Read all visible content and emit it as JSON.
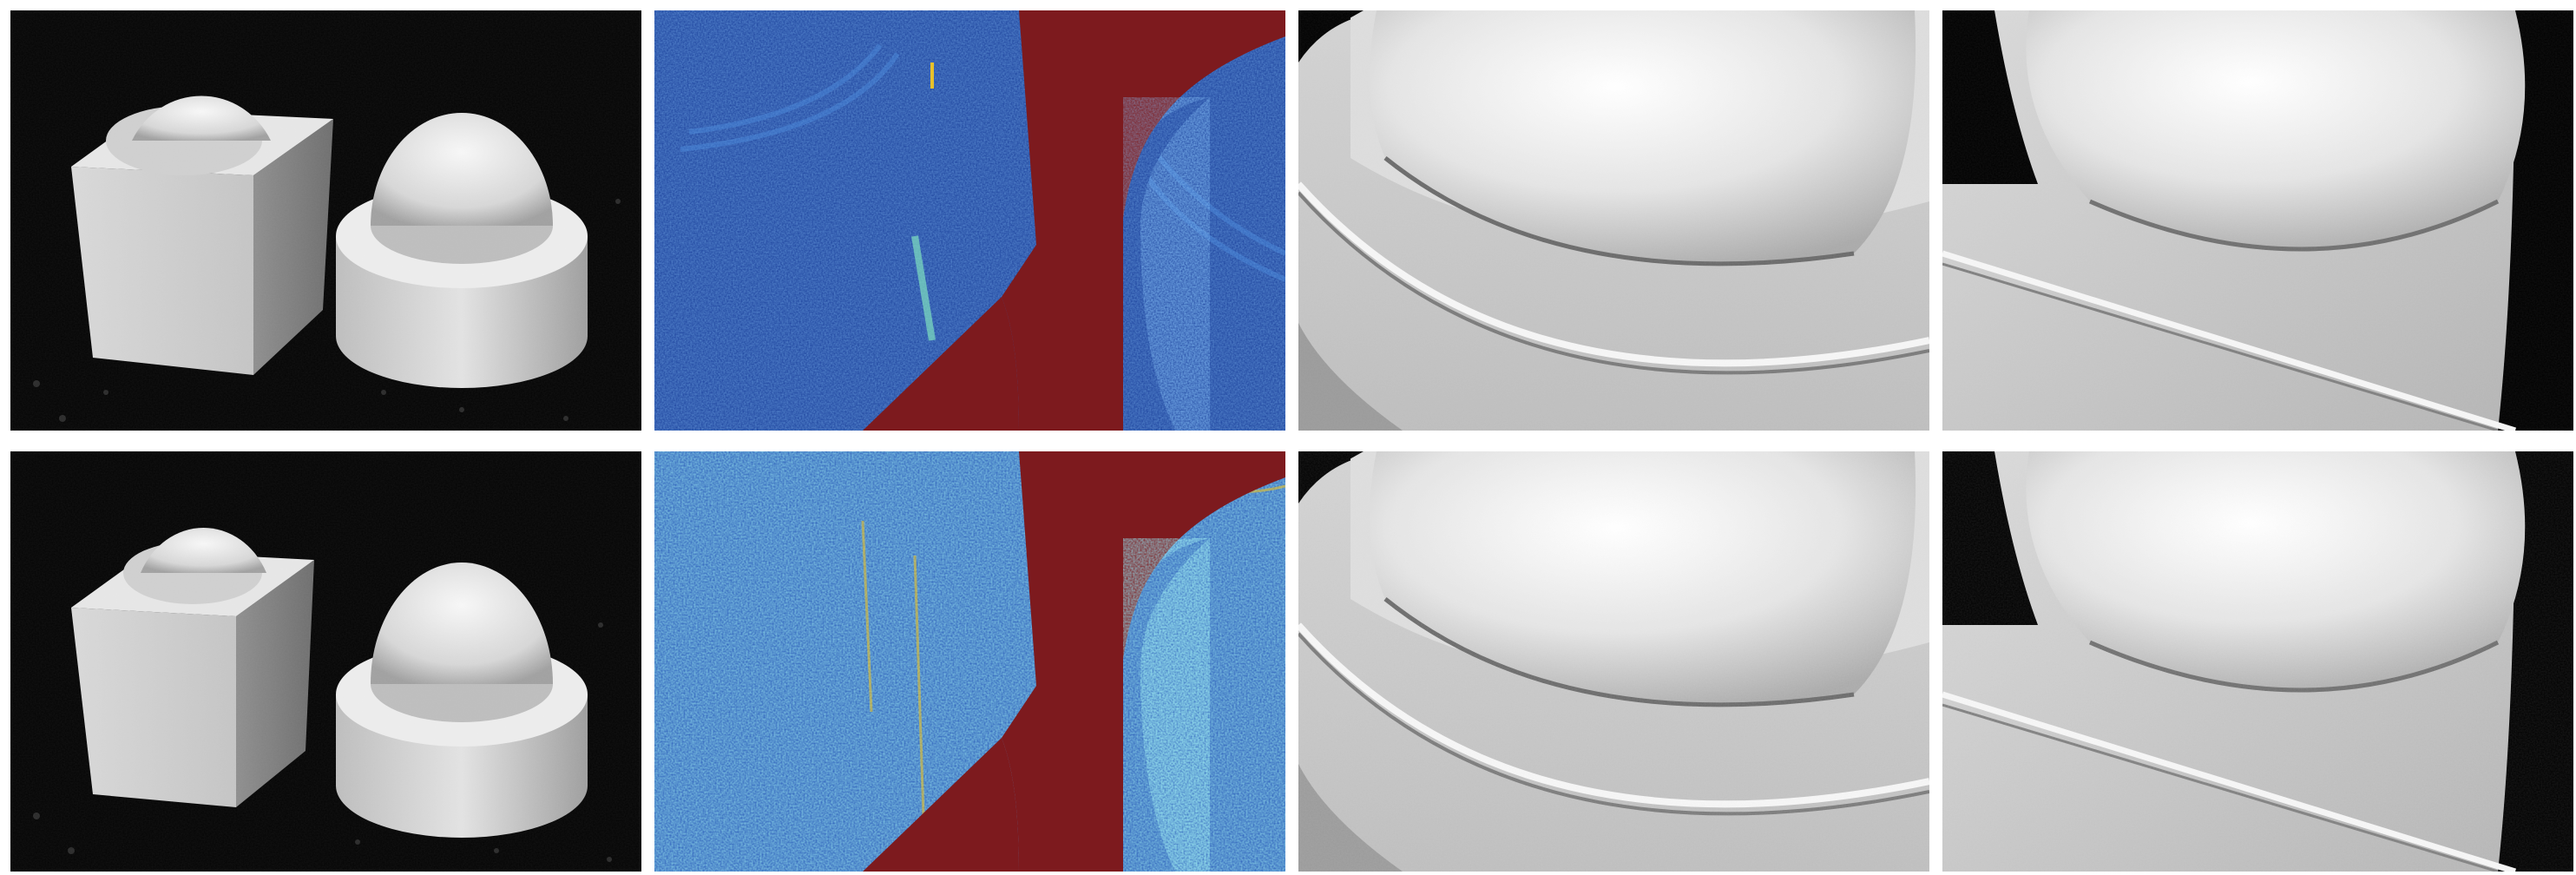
{
  "figure": {
    "rows": [
      {
        "panels": [
          {
            "kind": "photo",
            "label": ""
          },
          {
            "kind": "error-map",
            "label": ""
          },
          {
            "kind": "reconstruction-hemisphere",
            "label": ""
          },
          {
            "kind": "reconstruction-cube-edge",
            "label": ""
          }
        ]
      },
      {
        "panels": [
          {
            "kind": "photo",
            "label": ""
          },
          {
            "kind": "error-map",
            "label": ""
          },
          {
            "kind": "reconstruction-hemisphere",
            "label": ""
          },
          {
            "kind": "reconstruction-cube-edge",
            "label": ""
          }
        ]
      }
    ],
    "colors": {
      "background": "#ffffff",
      "photo_bg": "#050505",
      "error_low": "#1a3f9a",
      "error_mid": "#2f6fc8",
      "error_high": "#e8c12a",
      "error_invalid": "#7d1a1e",
      "surface_light": "#f2f2f2",
      "surface_shadow": "#8a8a8a"
    }
  }
}
